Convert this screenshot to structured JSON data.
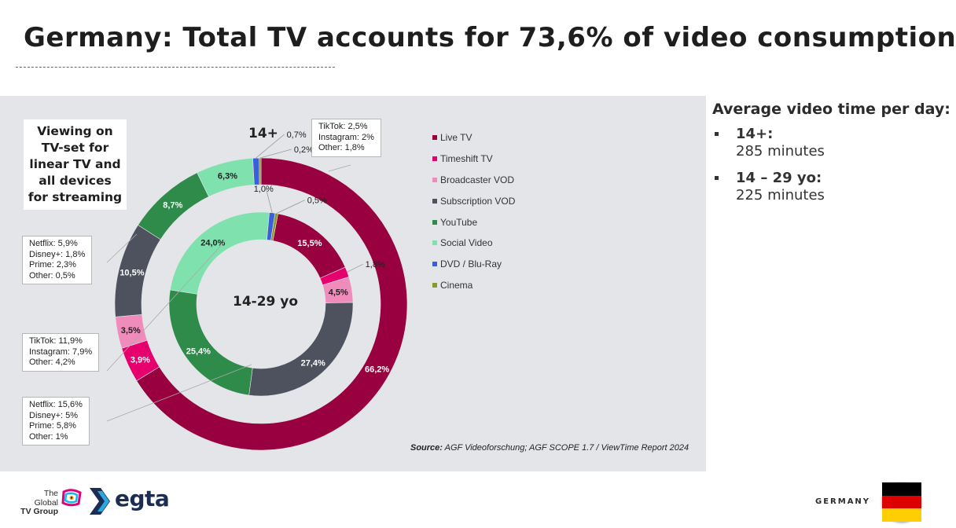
{
  "title": "Germany: Total TV accounts for 73,6% of video consumption",
  "colors": {
    "panel_bg": "#e4e5e8",
    "Live TV": "#98003f",
    "Timeshift TV": "#e5006e",
    "Broadcaster VOD": "#f08cbc",
    "Subscription VOD": "#4e525f",
    "YouTube": "#2e8b4a",
    "Social Video": "#7fe1ae",
    "DVD / Blu-Ray": "#3a5fd9",
    "Cinema": "#8a9a2a"
  },
  "chart_data": {
    "type": "donut",
    "categories": [
      "Live TV",
      "Timeshift TV",
      "Broadcaster VOD",
      "Subscription VOD",
      "YouTube",
      "Social Video",
      "DVD / Blu-Ray",
      "Cinema"
    ],
    "series": [
      {
        "name": "14+",
        "values": [
          66.2,
          3.9,
          3.5,
          10.5,
          8.7,
          6.3,
          0.7,
          0.2
        ],
        "labels": [
          "66,2%",
          "3,9%",
          "3,5%",
          "10,5%",
          "8,7%",
          "6,3%",
          "0,7%",
          "0,2%"
        ]
      },
      {
        "name": "14-29 yo",
        "values": [
          15.5,
          1.8,
          4.5,
          27.4,
          25.4,
          24.0,
          1.0,
          0.5
        ],
        "labels": [
          "15,5%",
          "1,8%",
          "4,5%",
          "27,4%",
          "25,4%",
          "24,0%",
          "1,0%",
          "0,5%"
        ]
      }
    ],
    "legend_position": "right"
  },
  "viewing_note": [
    "Viewing on",
    "TV-set for",
    "linear TV and",
    "all devices",
    "for streaming"
  ],
  "callouts": {
    "outer_social": [
      "TikTok: 2,5%",
      "Instagram: 2%",
      "Other: 1,8%"
    ],
    "outer_svod": [
      "Netflix: 5,9%",
      "Disney+: 1,8%",
      "Prime: 2,3%",
      "Other: 0,5%"
    ],
    "inner_social": [
      "TikTok: 11,9%",
      "Instagram: 7,9%",
      "Other: 4,2%"
    ],
    "inner_svod": [
      "Netflix: 15,6%",
      "Disney+: 5%",
      "Prime: 5,8%",
      "Other: 1%"
    ]
  },
  "source": {
    "label": "Source:",
    "text": " AGF Videoforschung; AGF SCOPE 1.7 / ViewTime Report 2024"
  },
  "side_panel": {
    "heading": "Average video time per day:",
    "items": [
      {
        "label": "14+:",
        "value": "285 minutes"
      },
      {
        "label": "14 – 29 yo:",
        "value": "225 minutes"
      }
    ]
  },
  "footer": {
    "tgtv_lines": [
      "The",
      "Global",
      "TV Group"
    ],
    "egta": "egta",
    "country": "GERMANY",
    "flag_colors": [
      "#000000",
      "#dd0000",
      "#ffce00"
    ]
  }
}
